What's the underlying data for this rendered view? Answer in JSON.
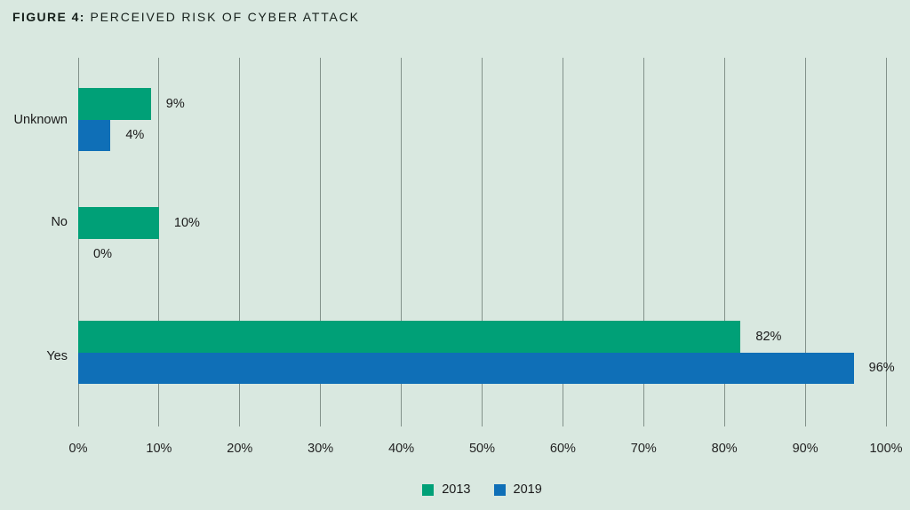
{
  "title": {
    "prefix": "FIGURE 4:",
    "text": "PERCEIVED RISK OF CYBER ATTACK"
  },
  "colors": {
    "background": "#D9E8E0",
    "series_2013": "#00A077",
    "series_2019": "#0F6FB7",
    "gridline": "#82918A",
    "text": "#1C1C1C"
  },
  "chart_data": {
    "type": "bar",
    "orientation": "horizontal",
    "title": "FIGURE 4: PERCEIVED RISK OF CYBER ATTACK",
    "categories": [
      "Unknown",
      "No",
      "Yes"
    ],
    "series": [
      {
        "name": "2013",
        "color": "#00A077",
        "values": [
          9,
          10,
          82
        ],
        "labels": [
          "9%",
          "10%",
          "82%"
        ]
      },
      {
        "name": "2019",
        "color": "#0F6FB7",
        "values": [
          4,
          0,
          96
        ],
        "labels": [
          "4%",
          "0%",
          "96%"
        ]
      }
    ],
    "xlabel": "",
    "ylabel": "",
    "xlim": [
      0,
      100
    ],
    "xticks": [
      "0%",
      "10%",
      "20%",
      "30%",
      "40%",
      "50%",
      "60%",
      "70%",
      "80%",
      "90%",
      "100%"
    ],
    "xtick_values": [
      0,
      10,
      20,
      30,
      40,
      50,
      60,
      70,
      80,
      90,
      100
    ],
    "grid": "vertical",
    "legend_position": "bottom-center"
  },
  "legend": {
    "items": [
      {
        "label": "2013",
        "color": "#00A077"
      },
      {
        "label": "2019",
        "color": "#0F6FB7"
      }
    ]
  }
}
